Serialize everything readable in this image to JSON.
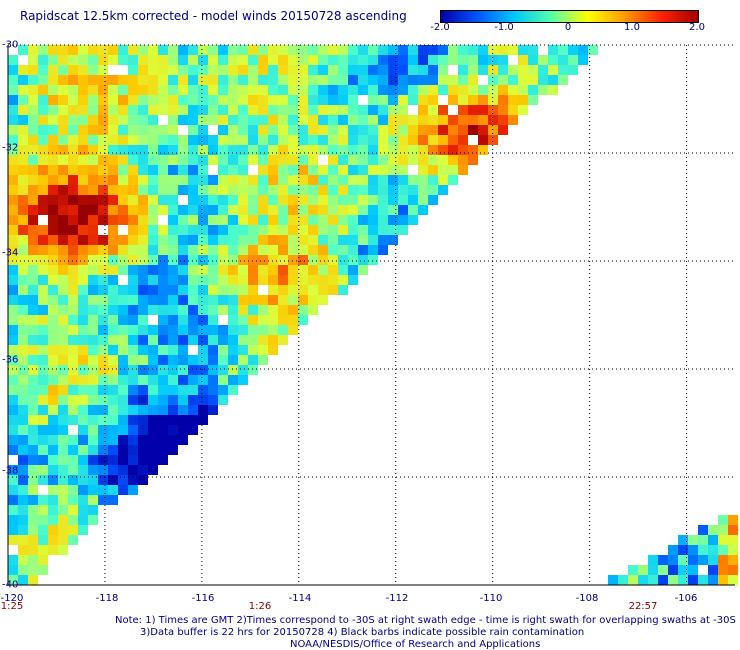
{
  "title": "Rapidscat 12.5km corrected - model winds 20150728 ascending",
  "colorbar": {
    "ticks": [
      "-2.0",
      "-1.0",
      "0",
      "1.0",
      "2.0"
    ],
    "tick_values": [
      -2,
      -1,
      0,
      1,
      2
    ],
    "colors": [
      "#0000aa",
      "#0055ff",
      "#00c8ff",
      "#55ffaa",
      "#ffff00",
      "#ff9900",
      "#ff2200",
      "#a00000"
    ]
  },
  "axes": {
    "lat_labels": [
      "-30",
      "-32",
      "-34",
      "-36",
      "-38",
      "-40"
    ],
    "lat_values": [
      -30,
      -32,
      -34,
      -36,
      -38,
      -40
    ],
    "lon_labels": [
      "-120",
      "-118",
      "-116",
      "-114",
      "-112",
      "-110",
      "-108",
      "-106"
    ],
    "lon_values": [
      -120,
      -118,
      -116,
      -114,
      -112,
      -110,
      -108,
      -106
    ],
    "lat_range": [
      -40,
      -30
    ],
    "lon_range": [
      -120,
      -105
    ]
  },
  "times": [
    {
      "label": "1:25",
      "lon": -120
    },
    {
      "label": "1:26",
      "lon": -115.2
    },
    {
      "label": "22:57",
      "lon": -106.8
    }
  ],
  "notes": {
    "line1": "Note: 1) Times are GMT 2)Times correspond to -30S at right swath edge - time is right swath for overlapping swaths at -30S",
    "line2": "3)Data buffer is 22 hrs for 20150728 4) Black barbs indicate possible rain contamination",
    "line3": "NOAA/NESDIS/Office of Research and Applications"
  },
  "colors": {
    "text": "#00008b",
    "time_text": "#8b0000",
    "grid": "#000000"
  }
}
